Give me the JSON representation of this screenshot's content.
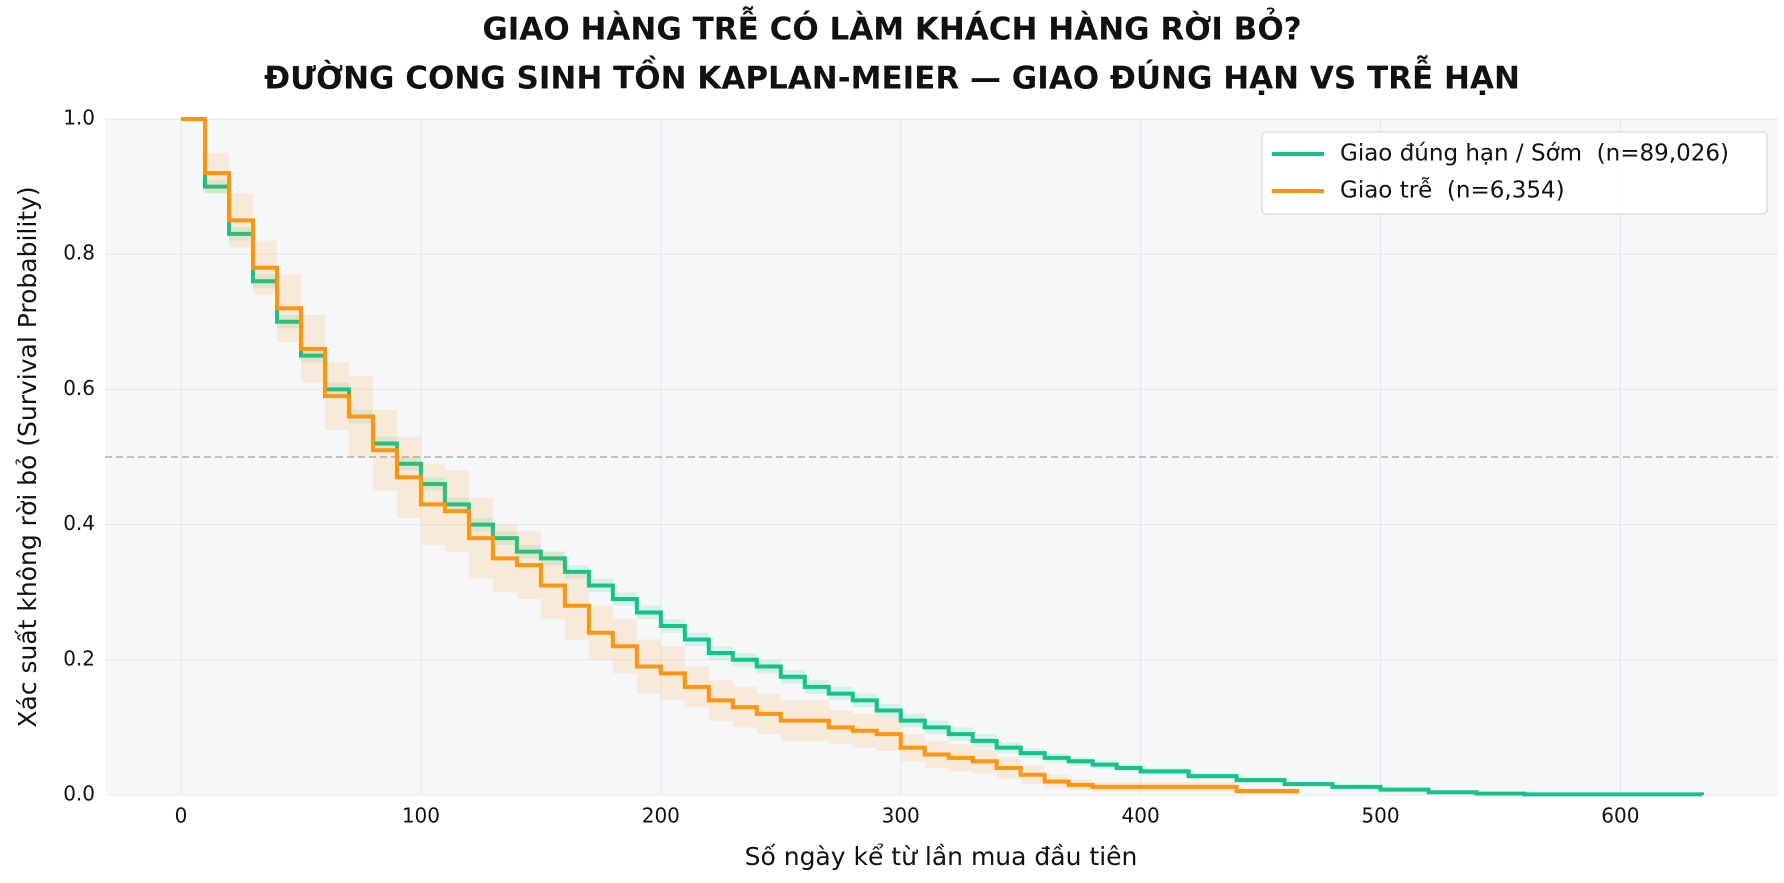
{
  "chart_data": {
    "type": "step",
    "title": "GIAO HÀNG TRỄ CÓ LÀM KHÁCH HÀNG RỜI BỎ?",
    "subtitle": "ĐƯỜNG CONG SINH TỒN KAPLAN-MEIER — GIAO ĐÚNG HẠN VS TRỄ HẠN",
    "x_label": "Số ngày kể từ lần mua đầu tiên",
    "y_label": "Xác suất không rời bỏ (Survival Probability)",
    "xlim": [
      -31.7,
      665.7
    ],
    "ylim": [
      0,
      1
    ],
    "xticks": [
      0,
      100,
      200,
      300,
      400,
      500,
      600
    ],
    "yticks": [
      {
        "value": 0,
        "label": "0.0"
      },
      {
        "value": 0.2,
        "label": "0.2"
      },
      {
        "value": 0.4,
        "label": "0.4"
      },
      {
        "value": 0.6,
        "label": "0.6"
      },
      {
        "value": 0.8,
        "label": "0.8"
      },
      {
        "value": 1,
        "label": "1.0"
      }
    ],
    "grid": true,
    "legend": "upper right",
    "reference_line": 0.5,
    "series": [
      {
        "name": "Giao đúng hạn / Sớm  (n=89,026)",
        "color": "#10c48a",
        "x": [
          0,
          10,
          20,
          30,
          40,
          50,
          60,
          70,
          80,
          90,
          100,
          110,
          120,
          130,
          140,
          150,
          160,
          170,
          180,
          190,
          200,
          210,
          220,
          230,
          240,
          250,
          260,
          270,
          280,
          290,
          300,
          310,
          320,
          330,
          340,
          350,
          360,
          370,
          380,
          390,
          400,
          420,
          440,
          460,
          480,
          500,
          520,
          540,
          560,
          600,
          634
        ],
        "values": [
          1,
          0.9,
          0.83,
          0.76,
          0.7,
          0.65,
          0.6,
          0.56,
          0.52,
          0.49,
          0.46,
          0.43,
          0.4,
          0.38,
          0.36,
          0.35,
          0.33,
          0.31,
          0.29,
          0.27,
          0.25,
          0.23,
          0.21,
          0.2,
          0.19,
          0.175,
          0.16,
          0.15,
          0.14,
          0.125,
          0.11,
          0.1,
          0.09,
          0.08,
          0.07,
          0.062,
          0.055,
          0.05,
          0.045,
          0.04,
          0.035,
          0.028,
          0.022,
          0.016,
          0.012,
          0.008,
          0.004,
          0.002,
          0.001,
          0.001,
          0
        ],
        "lower": [
          1,
          0.89,
          0.82,
          0.75,
          0.69,
          0.64,
          0.59,
          0.55,
          0.51,
          0.48,
          0.45,
          0.42,
          0.39,
          0.37,
          0.35,
          0.34,
          0.32,
          0.3,
          0.28,
          0.26,
          0.24,
          0.22,
          0.2,
          0.19,
          0.18,
          0.165,
          0.15,
          0.14,
          0.13,
          0.115,
          0.1,
          0.09,
          0.08,
          0.07,
          0.062,
          0.055,
          0.048,
          0.044,
          0.039,
          0.035,
          0.03,
          0.024,
          0.018,
          0.013,
          0.009,
          0.006,
          0.002,
          0.001,
          0,
          0,
          0
        ],
        "upper": [
          1,
          0.91,
          0.84,
          0.77,
          0.71,
          0.66,
          0.61,
          0.57,
          0.53,
          0.5,
          0.47,
          0.44,
          0.41,
          0.39,
          0.37,
          0.36,
          0.34,
          0.32,
          0.3,
          0.28,
          0.26,
          0.24,
          0.22,
          0.21,
          0.2,
          0.185,
          0.17,
          0.16,
          0.15,
          0.135,
          0.12,
          0.11,
          0.1,
          0.09,
          0.078,
          0.069,
          0.062,
          0.056,
          0.051,
          0.045,
          0.04,
          0.032,
          0.026,
          0.019,
          0.015,
          0.01,
          0.006,
          0.003,
          0.002,
          0.002,
          0.001
        ]
      },
      {
        "name": "Giao trễ  (n=6,354)",
        "color": "#ff9410",
        "x": [
          0,
          10,
          20,
          30,
          40,
          50,
          60,
          70,
          80,
          90,
          100,
          110,
          120,
          130,
          140,
          150,
          160,
          170,
          180,
          190,
          200,
          210,
          220,
          230,
          240,
          250,
          260,
          270,
          280,
          290,
          300,
          310,
          320,
          330,
          340,
          350,
          360,
          370,
          380,
          420,
          440,
          466
        ],
        "values": [
          1,
          0.92,
          0.85,
          0.78,
          0.72,
          0.66,
          0.59,
          0.56,
          0.51,
          0.47,
          0.43,
          0.42,
          0.38,
          0.35,
          0.34,
          0.31,
          0.28,
          0.24,
          0.22,
          0.19,
          0.18,
          0.16,
          0.14,
          0.13,
          0.12,
          0.11,
          0.11,
          0.1,
          0.095,
          0.09,
          0.07,
          0.06,
          0.055,
          0.05,
          0.04,
          0.03,
          0.02,
          0.015,
          0.012,
          0.012,
          0.006,
          0.006
        ],
        "lower": [
          1,
          0.89,
          0.81,
          0.74,
          0.67,
          0.61,
          0.54,
          0.5,
          0.45,
          0.41,
          0.37,
          0.36,
          0.32,
          0.3,
          0.29,
          0.26,
          0.23,
          0.2,
          0.18,
          0.15,
          0.14,
          0.13,
          0.11,
          0.1,
          0.09,
          0.08,
          0.08,
          0.075,
          0.07,
          0.065,
          0.05,
          0.04,
          0.035,
          0.032,
          0.024,
          0.016,
          0.01,
          0.007,
          0.005,
          0.005,
          0.002,
          0.002
        ],
        "upper": [
          1,
          0.95,
          0.89,
          0.82,
          0.77,
          0.71,
          0.64,
          0.62,
          0.57,
          0.53,
          0.49,
          0.48,
          0.44,
          0.4,
          0.39,
          0.36,
          0.33,
          0.28,
          0.26,
          0.23,
          0.22,
          0.19,
          0.17,
          0.16,
          0.15,
          0.14,
          0.14,
          0.125,
          0.12,
          0.115,
          0.09,
          0.08,
          0.075,
          0.068,
          0.056,
          0.044,
          0.03,
          0.023,
          0.019,
          0.019,
          0.01,
          0.01
        ]
      }
    ]
  }
}
